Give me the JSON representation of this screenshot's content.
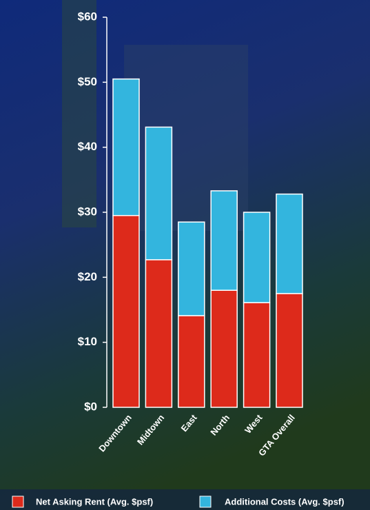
{
  "chart_data": {
    "type": "stacked-bar",
    "categories": [
      "Downtown",
      "Midtown",
      "East",
      "North",
      "West",
      "GTA Overall"
    ],
    "series": [
      {
        "name": "Net Asking Rent (Avg. $psf)",
        "color": "#dd2a1b",
        "values": [
          29.5,
          22.7,
          14.1,
          18.0,
          16.1,
          17.5
        ]
      },
      {
        "name": "Additional Costs (Avg. $psf)",
        "color": "#33b5de",
        "values": [
          21.0,
          20.4,
          14.4,
          15.3,
          13.9,
          15.3
        ]
      }
    ],
    "ylim": [
      0,
      60
    ],
    "yticks": [
      {
        "value": 0,
        "label": "$0"
      },
      {
        "value": 10,
        "label": "$10"
      },
      {
        "value": 20,
        "label": "$20"
      },
      {
        "value": 30,
        "label": "$30"
      },
      {
        "value": 40,
        "label": "$40"
      },
      {
        "value": 50,
        "label": "$50"
      },
      {
        "value": 60,
        "label": "$60"
      }
    ]
  }
}
